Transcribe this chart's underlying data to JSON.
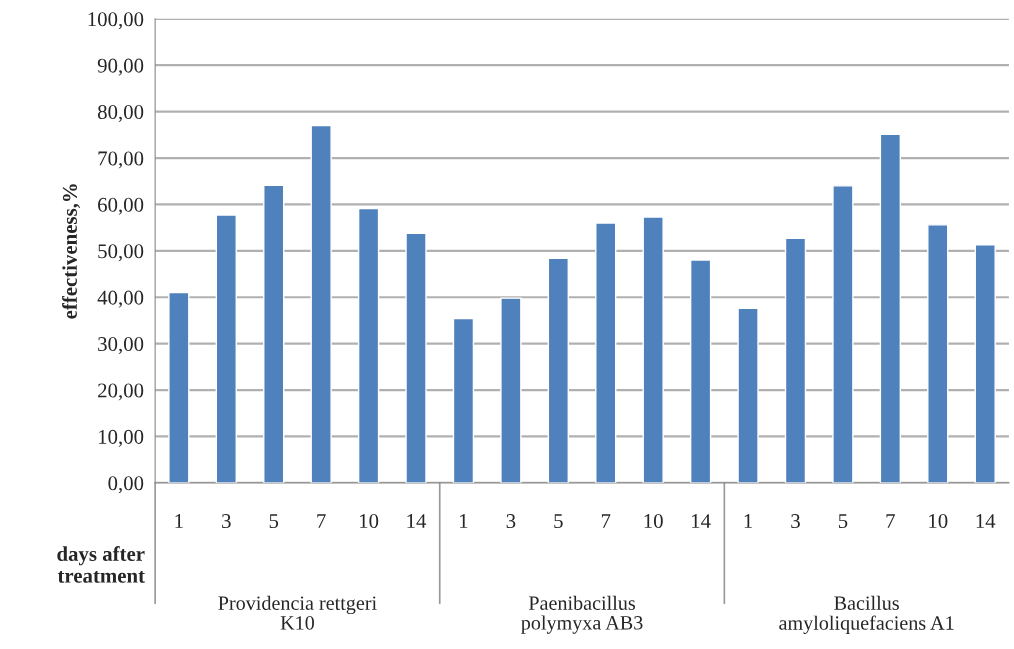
{
  "chart_data": {
    "type": "bar",
    "ylabel": "effectiveness,%",
    "xlabel": "days after treatment",
    "categories": [
      "1",
      "3",
      "5",
      "7",
      "10",
      "14",
      "1",
      "3",
      "5",
      "7",
      "10",
      "14",
      "1",
      "3",
      "5",
      "7",
      "10",
      "14"
    ],
    "values": [
      41.0,
      57.7,
      64.1,
      77.0,
      59.1,
      53.8,
      35.4,
      39.8,
      48.4,
      56.0,
      57.3,
      48.0,
      37.6,
      52.7,
      64.0,
      75.1,
      55.6,
      51.3
    ],
    "color": "#4f81bd",
    "ylim": [
      0,
      100
    ],
    "yticks": [
      {
        "value": 0,
        "label": "0,00"
      },
      {
        "value": 10,
        "label": "10,00"
      },
      {
        "value": 20,
        "label": "20,00"
      },
      {
        "value": 30,
        "label": "30,00"
      },
      {
        "value": 40,
        "label": "40,00"
      },
      {
        "value": 50,
        "label": "50,00"
      },
      {
        "value": 60,
        "label": "60,00"
      },
      {
        "value": 70,
        "label": "70,00"
      },
      {
        "value": 80,
        "label": "80,00"
      },
      {
        "value": 90,
        "label": "90,00"
      },
      {
        "value": 100,
        "label": "100,00"
      }
    ],
    "grid": "y",
    "annotations": [
      "Providencia rettgeri\nK10",
      "Paenibacillus\npolymyxa AB3",
      "Bacillus\namyloliquefaciens A1"
    ]
  }
}
